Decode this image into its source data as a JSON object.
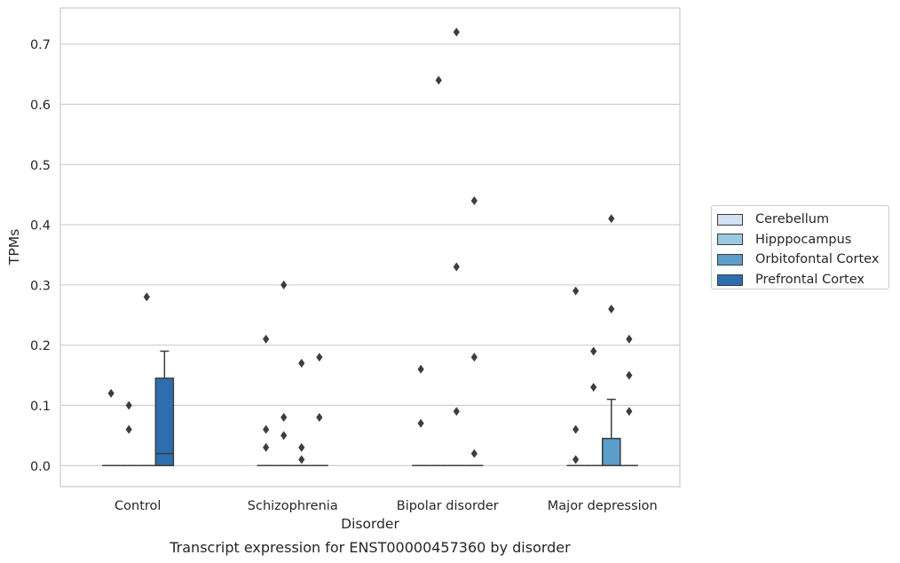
{
  "chart_data": {
    "type": "box",
    "title": "Transcript expression for ENST00000457360 by disorder",
    "xlabel": "Disorder",
    "ylabel": "TPMs",
    "categories": [
      "Control",
      "Schizophrenia",
      "Bipolar disorder",
      "Major depression"
    ],
    "ylim": [
      -0.035,
      0.76
    ],
    "yticks": [
      0.0,
      0.1,
      0.2,
      0.3,
      0.4,
      0.5,
      0.6,
      0.7
    ],
    "ytick_labels": [
      "0.0",
      "0.1",
      "0.2",
      "0.3",
      "0.4",
      "0.5",
      "0.6",
      "0.7"
    ],
    "grid": true,
    "legend_position": "right",
    "series": [
      {
        "name": "Cerebellum",
        "color": "#d1e2f2",
        "boxes": [
          {
            "q1": 0,
            "median": 0,
            "q3": 0,
            "whisker_low": 0,
            "whisker_high": 0,
            "outliers": [
              0.12
            ]
          },
          {
            "q1": 0,
            "median": 0,
            "q3": 0,
            "whisker_low": 0,
            "whisker_high": 0,
            "outliers": [
              0.21,
              0.06,
              0.03
            ]
          },
          {
            "q1": 0,
            "median": 0,
            "q3": 0,
            "whisker_low": 0,
            "whisker_high": 0,
            "outliers": [
              0.16,
              0.07
            ]
          },
          {
            "q1": 0,
            "median": 0,
            "q3": 0,
            "whisker_low": 0,
            "whisker_high": 0,
            "outliers": [
              0.29,
              0.06,
              0.01
            ]
          }
        ]
      },
      {
        "name": "Hipppocampus",
        "color": "#9ac8e0",
        "boxes": [
          {
            "q1": 0,
            "median": 0,
            "q3": 0,
            "whisker_low": 0,
            "whisker_high": 0,
            "outliers": [
              0.1,
              0.06
            ]
          },
          {
            "q1": 0,
            "median": 0,
            "q3": 0,
            "whisker_low": 0,
            "whisker_high": 0,
            "outliers": [
              0.3,
              0.08,
              0.05
            ]
          },
          {
            "q1": 0,
            "median": 0,
            "q3": 0,
            "whisker_low": 0,
            "whisker_high": 0,
            "outliers": [
              0.64
            ]
          },
          {
            "q1": 0,
            "median": 0,
            "q3": 0,
            "whisker_low": 0,
            "whisker_high": 0,
            "outliers": [
              0.19,
              0.13
            ]
          }
        ]
      },
      {
        "name": "Orbitofontal Cortex",
        "color": "#5a9ec9",
        "boxes": [
          {
            "q1": 0,
            "median": 0,
            "q3": 0,
            "whisker_low": 0,
            "whisker_high": 0,
            "outliers": [
              0.28
            ]
          },
          {
            "q1": 0,
            "median": 0,
            "q3": 0,
            "whisker_low": 0,
            "whisker_high": 0,
            "outliers": [
              0.17,
              0.03,
              0.01
            ]
          },
          {
            "q1": 0,
            "median": 0,
            "q3": 0,
            "whisker_low": 0,
            "whisker_high": 0,
            "outliers": [
              0.72,
              0.33,
              0.09
            ]
          },
          {
            "q1": 0,
            "median": 0,
            "q3": 0.045,
            "whisker_low": 0,
            "whisker_high": 0.11,
            "outliers": [
              0.41,
              0.26
            ]
          }
        ]
      },
      {
        "name": "Prefrontal Cortex",
        "color": "#2d6eb0",
        "boxes": [
          {
            "q1": 0,
            "median": 0.02,
            "q3": 0.145,
            "whisker_low": 0,
            "whisker_high": 0.19,
            "outliers": []
          },
          {
            "q1": 0,
            "median": 0,
            "q3": 0,
            "whisker_low": 0,
            "whisker_high": 0,
            "outliers": [
              0.18,
              0.08
            ]
          },
          {
            "q1": 0,
            "median": 0,
            "q3": 0,
            "whisker_low": 0,
            "whisker_high": 0,
            "outliers": [
              0.44,
              0.18,
              0.02
            ]
          },
          {
            "q1": 0,
            "median": 0,
            "q3": 0,
            "whisker_low": 0,
            "whisker_high": 0,
            "outliers": [
              0.21,
              0.15,
              0.09
            ]
          }
        ]
      }
    ]
  }
}
